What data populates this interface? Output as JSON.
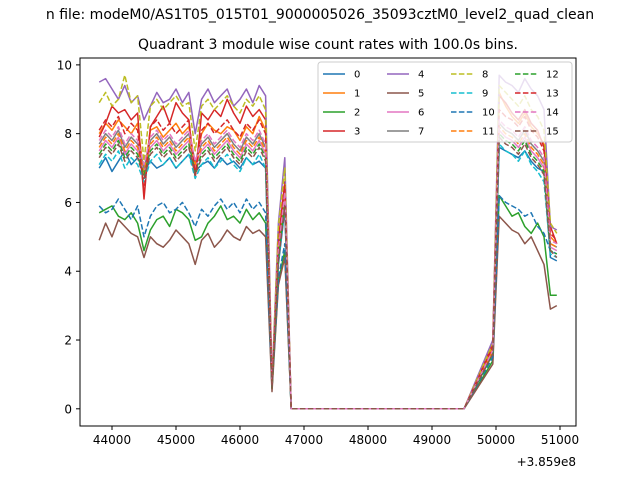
{
  "chart_data": {
    "type": "line",
    "suptitle": "n file: modeM0/AS1T05_015T01_9000005026_35093cztM0_level2_quad_clean",
    "title": "Quadrant 3 module wise count rates with 100.0s bins.",
    "xlabel": "",
    "ylabel": "",
    "x_offset_label": "+3.859e8",
    "x_range": [
      43500,
      51250
    ],
    "y_range": [
      -0.5,
      10.2
    ],
    "x_ticks": [
      44000,
      45000,
      46000,
      47000,
      48000,
      49000,
      50000,
      51000
    ],
    "x_tick_labels": [
      "44000",
      "45000",
      "46000",
      "47000",
      "48000",
      "49000",
      "50000",
      "51000"
    ],
    "y_ticks": [
      0,
      2,
      4,
      6,
      8,
      10
    ],
    "y_tick_labels": [
      "0",
      "2",
      "4",
      "6",
      "8",
      "10"
    ],
    "grid": false,
    "legend_placement": "top-right",
    "legend_columns": 4,
    "x": [
      43800,
      43900,
      44000,
      44100,
      44200,
      44300,
      44400,
      44500,
      44600,
      44700,
      44800,
      44900,
      45000,
      45100,
      45200,
      45300,
      45400,
      45500,
      45600,
      45700,
      45800,
      45900,
      46000,
      46100,
      46200,
      46300,
      46400,
      46500,
      46600,
      46700,
      46800,
      46900,
      47000,
      47500,
      48000,
      48500,
      49000,
      49500,
      49950,
      50050,
      50150,
      50250,
      50350,
      50450,
      50550,
      50650,
      50750,
      50850,
      50950
    ],
    "series": [
      {
        "name": "0",
        "color": "#1f77b4",
        "style": "solid",
        "values": [
          7.0,
          7.3,
          6.9,
          7.2,
          7.5,
          7.1,
          7.3,
          6.9,
          7.2,
          7.0,
          7.1,
          7.3,
          7.0,
          7.2,
          7.4,
          6.9,
          7.1,
          7.2,
          7.0,
          7.3,
          7.1,
          7.2,
          7.0,
          7.3,
          7.1,
          7.2,
          7.0,
          0.6,
          4.2,
          5.8,
          0,
          0,
          0,
          0,
          0,
          0,
          0,
          0,
          1.6,
          7.6,
          7.5,
          7.4,
          7.3,
          7.5,
          7.2,
          7.0,
          6.9,
          4.4,
          4.3
        ]
      },
      {
        "name": "1",
        "color": "#ff7f0e",
        "style": "solid",
        "values": [
          8.0,
          8.3,
          8.1,
          8.4,
          8.2,
          8.0,
          8.3,
          6.8,
          8.1,
          8.2,
          7.9,
          8.1,
          8.3,
          8.0,
          8.2,
          7.1,
          8.0,
          8.3,
          8.1,
          8.0,
          8.2,
          8.1,
          7.8,
          8.2,
          8.0,
          8.5,
          8.1,
          0.7,
          4.7,
          6.5,
          0,
          0,
          0,
          0,
          0,
          0,
          0,
          0,
          1.8,
          9.2,
          8.8,
          8.5,
          8.3,
          8.6,
          8.2,
          8.0,
          7.7,
          5.0,
          4.8
        ]
      },
      {
        "name": "2",
        "color": "#2ca02c",
        "style": "solid",
        "values": [
          5.7,
          5.8,
          5.9,
          5.6,
          5.5,
          5.7,
          5.4,
          4.6,
          5.2,
          5.5,
          5.6,
          5.3,
          5.8,
          5.7,
          5.5,
          4.9,
          5.0,
          5.4,
          5.6,
          5.9,
          5.5,
          5.6,
          5.4,
          5.8,
          5.5,
          5.7,
          5.4,
          0.6,
          3.7,
          4.6,
          0,
          0,
          0,
          0,
          0,
          0,
          0,
          0,
          1.4,
          6.2,
          5.9,
          5.6,
          5.7,
          5.3,
          5.1,
          5.4,
          5.0,
          3.3,
          3.3
        ]
      },
      {
        "name": "3",
        "color": "#d62728",
        "style": "solid",
        "values": [
          7.9,
          8.3,
          8.8,
          8.6,
          8.7,
          8.4,
          8.6,
          6.1,
          8.2,
          8.5,
          8.8,
          8.3,
          8.9,
          8.6,
          8.4,
          6.7,
          8.6,
          8.4,
          8.7,
          8.5,
          9.0,
          8.6,
          8.3,
          8.8,
          8.5,
          8.7,
          8.4,
          0.6,
          4.9,
          6.6,
          0,
          0,
          0,
          0,
          0,
          0,
          0,
          0,
          1.9,
          9.1,
          8.9,
          8.6,
          8.4,
          8.7,
          8.3,
          8.1,
          7.6,
          5.3,
          4.8
        ]
      },
      {
        "name": "4",
        "color": "#9467bd",
        "style": "solid",
        "values": [
          9.5,
          9.6,
          9.3,
          9.0,
          9.4,
          8.9,
          9.1,
          8.4,
          8.8,
          9.2,
          8.9,
          9.0,
          9.3,
          8.9,
          9.2,
          8.0,
          9.0,
          9.3,
          8.9,
          9.1,
          9.3,
          8.8,
          9.0,
          9.3,
          8.9,
          9.4,
          9.1,
          0.8,
          5.4,
          7.3,
          0,
          0,
          0,
          0,
          0,
          0,
          0,
          0,
          2.0,
          9.7,
          9.5,
          9.4,
          9.2,
          9.6,
          9.3,
          9.1,
          8.7,
          5.3,
          5.2
        ]
      },
      {
        "name": "5",
        "color": "#8c564b",
        "style": "solid",
        "values": [
          4.9,
          5.4,
          5.0,
          5.5,
          5.3,
          5.1,
          5.0,
          4.4,
          5.0,
          4.8,
          4.7,
          4.9,
          5.2,
          5.0,
          4.8,
          4.2,
          4.9,
          5.1,
          4.7,
          4.9,
          5.2,
          5.0,
          4.9,
          5.3,
          5.1,
          5.2,
          5.0,
          0.5,
          3.6,
          4.4,
          0,
          0,
          0,
          0,
          0,
          0,
          0,
          0,
          1.3,
          5.6,
          5.4,
          5.2,
          5.1,
          4.8,
          5.0,
          4.6,
          4.2,
          2.9,
          3.0
        ]
      },
      {
        "name": "6",
        "color": "#e377c2",
        "style": "solid",
        "values": [
          7.5,
          7.8,
          7.6,
          7.9,
          7.4,
          7.7,
          7.5,
          6.9,
          7.6,
          7.8,
          7.5,
          7.7,
          7.4,
          7.6,
          7.8,
          7.0,
          7.5,
          7.7,
          7.4,
          7.6,
          7.8,
          7.5,
          7.3,
          7.7,
          7.5,
          7.8,
          7.4,
          0.7,
          4.4,
          6.1,
          0,
          0,
          0,
          0,
          0,
          0,
          0,
          0,
          1.7,
          8.1,
          7.9,
          7.8,
          7.6,
          7.9,
          7.5,
          7.3,
          7.0,
          4.7,
          4.6
        ]
      },
      {
        "name": "7",
        "color": "#7f7f7f",
        "style": "solid",
        "values": [
          7.7,
          8.0,
          7.8,
          8.1,
          7.6,
          7.9,
          7.7,
          7.0,
          7.8,
          8.0,
          7.7,
          7.9,
          7.6,
          7.8,
          8.0,
          7.2,
          7.7,
          7.9,
          7.6,
          7.8,
          8.0,
          7.7,
          7.5,
          7.9,
          7.7,
          8.0,
          7.6,
          0.7,
          4.5,
          6.2,
          0,
          0,
          0,
          0,
          0,
          0,
          0,
          0,
          1.7,
          8.3,
          8.1,
          8.0,
          7.8,
          8.1,
          7.7,
          7.5,
          7.2,
          4.8,
          4.7
        ]
      },
      {
        "name": "8",
        "color": "#bcbd22",
        "style": "dashed",
        "values": [
          8.9,
          9.2,
          8.8,
          9.0,
          9.7,
          8.9,
          9.1,
          7.2,
          8.8,
          9.0,
          8.7,
          8.9,
          9.1,
          8.8,
          8.9,
          7.5,
          8.8,
          9.0,
          8.7,
          8.9,
          9.1,
          8.8,
          8.6,
          9.0,
          8.8,
          9.1,
          8.7,
          0.7,
          5.3,
          7.0,
          0,
          0,
          0,
          0,
          0,
          0,
          0,
          0,
          1.9,
          9.4,
          9.2,
          9.0,
          8.8,
          9.1,
          8.7,
          8.5,
          8.1,
          5.4,
          5.1
        ]
      },
      {
        "name": "9",
        "color": "#17becf",
        "style": "dashed",
        "values": [
          7.1,
          7.4,
          7.2,
          7.5,
          7.0,
          7.3,
          7.1,
          6.6,
          7.2,
          7.4,
          7.1,
          7.3,
          7.0,
          7.2,
          7.4,
          6.7,
          7.1,
          7.3,
          7.0,
          7.2,
          7.4,
          7.1,
          6.9,
          7.3,
          7.1,
          7.4,
          7.0,
          0.7,
          4.3,
          5.9,
          0,
          0,
          0,
          0,
          0,
          0,
          0,
          0,
          1.6,
          7.7,
          7.5,
          7.4,
          7.2,
          7.5,
          7.1,
          6.9,
          6.6,
          4.5,
          4.4
        ]
      },
      {
        "name": "10",
        "color": "#1f77b4",
        "style": "dashed",
        "values": [
          5.9,
          5.7,
          5.8,
          6.1,
          5.8,
          5.5,
          5.9,
          5.0,
          5.6,
          5.9,
          6.0,
          5.7,
          5.8,
          6.0,
          5.7,
          5.3,
          5.8,
          5.6,
          5.9,
          6.1,
          5.8,
          6.0,
          5.7,
          6.1,
          5.8,
          6.0,
          5.7,
          0.6,
          3.8,
          4.8,
          0,
          0,
          0,
          0,
          0,
          0,
          0,
          0,
          1.5,
          6.2,
          6.0,
          5.9,
          5.8,
          5.6,
          5.7,
          5.3,
          5.1,
          4.6,
          4.5
        ]
      },
      {
        "name": "11",
        "color": "#ff7f0e",
        "style": "dashed",
        "values": [
          7.6,
          7.9,
          7.7,
          8.0,
          7.5,
          7.8,
          7.6,
          6.9,
          7.7,
          7.9,
          7.6,
          7.8,
          7.5,
          7.7,
          7.9,
          7.1,
          7.6,
          7.8,
          7.5,
          7.7,
          7.9,
          7.6,
          7.4,
          7.8,
          7.6,
          7.9,
          7.5,
          0.7,
          4.5,
          6.1,
          0,
          0,
          0,
          0,
          0,
          0,
          0,
          0,
          1.7,
          8.2,
          8.0,
          7.9,
          7.7,
          8.0,
          7.6,
          7.4,
          7.1,
          4.8,
          4.7
        ]
      },
      {
        "name": "12",
        "color": "#2ca02c",
        "style": "dashed",
        "values": [
          7.4,
          7.7,
          7.5,
          7.8,
          7.3,
          7.6,
          7.4,
          6.8,
          7.5,
          7.7,
          7.4,
          7.6,
          7.3,
          7.5,
          7.7,
          6.9,
          7.4,
          7.6,
          7.3,
          7.5,
          7.7,
          7.4,
          7.2,
          7.6,
          7.4,
          7.7,
          7.3,
          0.6,
          4.4,
          6.0,
          0,
          0,
          0,
          0,
          0,
          0,
          0,
          0,
          1.6,
          8.0,
          7.8,
          7.7,
          7.5,
          7.8,
          7.4,
          7.2,
          6.9,
          4.6,
          4.5
        ]
      },
      {
        "name": "13",
        "color": "#d62728",
        "style": "dashed",
        "values": [
          8.1,
          8.4,
          8.2,
          8.5,
          8.0,
          8.3,
          8.1,
          6.3,
          8.2,
          8.4,
          8.1,
          8.3,
          8.0,
          8.2,
          8.4,
          6.8,
          8.1,
          8.3,
          8.0,
          8.2,
          8.4,
          8.1,
          7.9,
          8.3,
          8.1,
          8.4,
          8.0,
          0.7,
          4.8,
          6.5,
          0,
          0,
          0,
          0,
          0,
          0,
          0,
          0,
          1.8,
          8.7,
          8.5,
          8.4,
          8.2,
          8.5,
          8.1,
          7.9,
          7.5,
          5.1,
          4.9
        ]
      },
      {
        "name": "14",
        "color": "#e377c2",
        "style": "dashed",
        "values": [
          7.8,
          8.1,
          7.9,
          8.2,
          7.7,
          8.0,
          7.8,
          7.1,
          7.9,
          8.1,
          7.8,
          8.0,
          7.7,
          7.9,
          8.1,
          7.2,
          7.8,
          8.0,
          7.7,
          7.9,
          8.1,
          7.8,
          7.6,
          8.0,
          7.8,
          8.1,
          7.7,
          0.7,
          4.6,
          6.3,
          0,
          0,
          0,
          0,
          0,
          0,
          0,
          0,
          1.7,
          8.4,
          8.2,
          8.1,
          7.9,
          8.2,
          7.8,
          7.6,
          7.3,
          4.9,
          4.8
        ]
      },
      {
        "name": "15",
        "color": "#8c564b",
        "style": "dashed",
        "values": [
          7.3,
          7.6,
          7.4,
          7.7,
          7.2,
          7.5,
          7.3,
          6.7,
          7.4,
          7.6,
          7.3,
          7.5,
          7.2,
          7.4,
          7.6,
          6.8,
          7.3,
          7.5,
          7.2,
          7.4,
          7.6,
          7.3,
          7.1,
          7.5,
          7.3,
          7.6,
          7.2,
          0.6,
          4.3,
          5.9,
          0,
          0,
          0,
          0,
          0,
          0,
          0,
          0,
          1.6,
          7.9,
          7.7,
          7.6,
          7.4,
          7.7,
          7.3,
          7.1,
          6.8,
          4.6,
          4.4
        ]
      }
    ]
  }
}
